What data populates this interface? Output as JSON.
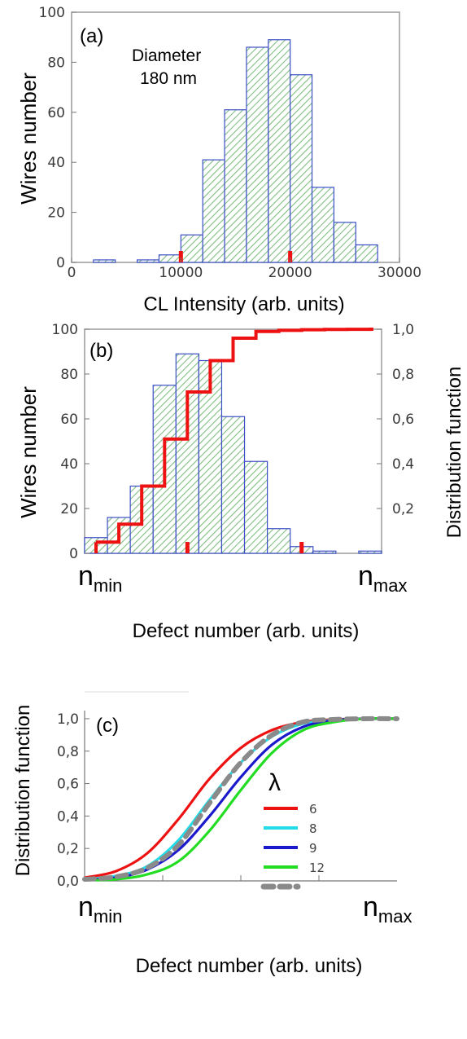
{
  "colors": {
    "bar_fill_hatch": "#7fbf7f",
    "bar_edge": "#3b4fc4",
    "marker_red": "#ee1111",
    "step_red": "#ee1111"
  },
  "chart_data": [
    {
      "id": "a",
      "type": "bar",
      "panel_label": "(a)",
      "xlabel": "CL Intensity (arb. units)",
      "ylabel": "Wires number",
      "xlim": [
        0,
        30000
      ],
      "ylim": [
        0,
        100
      ],
      "x_ticks": [
        "0",
        "10000",
        "20000",
        "30000"
      ],
      "y_ticks": [
        "0",
        "20",
        "40",
        "60",
        "80",
        "100"
      ],
      "annotation": [
        "Diameter",
        "180 nm"
      ],
      "bin_edges": [
        2000,
        4000,
        6000,
        8000,
        10000,
        12000,
        14000,
        16000,
        18000,
        20000,
        22000,
        24000,
        26000,
        28000
      ],
      "values": [
        1,
        0,
        1,
        3,
        11,
        41,
        61,
        86,
        89,
        75,
        30,
        16,
        7
      ],
      "markers_x": [
        10000,
        20000
      ]
    },
    {
      "id": "b",
      "type": "bar",
      "panel_label": "(b)",
      "xlabel": "Defect number (arb. units)",
      "ylabel": "Wires number",
      "ylabel_right": "Distribution function",
      "ylim": [
        0,
        100
      ],
      "ylim_right": [
        0,
        1
      ],
      "y_ticks": [
        "0",
        "20",
        "40",
        "60",
        "80",
        "100"
      ],
      "y_ticks_right": [
        "0,2",
        "0,4",
        "0,6",
        "0,8",
        "1,0"
      ],
      "x_min_label": {
        "base": "n",
        "sub": "min"
      },
      "x_max_label": {
        "base": "n",
        "sub": "max"
      },
      "bin_count": 13,
      "values": [
        7,
        16,
        30,
        75,
        89,
        86,
        61,
        41,
        11,
        3,
        1,
        0,
        1
      ],
      "cumulative": [
        0.05,
        0.13,
        0.3,
        0.51,
        0.72,
        0.86,
        0.96,
        0.99,
        0.995,
        0.998,
        0.999,
        0.9995,
        1.0
      ],
      "markers_bin": [
        4,
        9
      ]
    },
    {
      "id": "c",
      "type": "line",
      "panel_label": "(c)",
      "xlabel": "Defect number (arb. units)",
      "ylabel": "Distribution function",
      "ylim": [
        0,
        1.05
      ],
      "y_ticks": [
        "0,0",
        "0,2",
        "0,4",
        "0,6",
        "0,8",
        "1,0"
      ],
      "x_min_label": {
        "base": "n",
        "sub": "min"
      },
      "x_max_label": {
        "base": "n",
        "sub": "max"
      },
      "legend_title": "λ",
      "series": [
        {
          "name": "6",
          "color": "#ee1111",
          "dash": false,
          "points": [
            [
              0.0,
              0.02
            ],
            [
              0.1,
              0.06
            ],
            [
              0.2,
              0.17
            ],
            [
              0.3,
              0.38
            ],
            [
              0.4,
              0.63
            ],
            [
              0.5,
              0.82
            ],
            [
              0.6,
              0.93
            ],
            [
              0.7,
              0.98
            ],
            [
              0.8,
              0.995
            ],
            [
              0.9,
              1.0
            ],
            [
              1.0,
              1.0
            ]
          ]
        },
        {
          "name": "8",
          "color": "#22dde8",
          "dash": false,
          "points": [
            [
              0.0,
              0.01
            ],
            [
              0.1,
              0.03
            ],
            [
              0.2,
              0.09
            ],
            [
              0.3,
              0.25
            ],
            [
              0.4,
              0.5
            ],
            [
              0.5,
              0.73
            ],
            [
              0.6,
              0.89
            ],
            [
              0.7,
              0.97
            ],
            [
              0.8,
              0.99
            ],
            [
              0.9,
              1.0
            ],
            [
              1.0,
              1.0
            ]
          ]
        },
        {
          "name": "9",
          "color": "#1a1acc",
          "dash": false,
          "points": [
            [
              0.0,
              0.01
            ],
            [
              0.1,
              0.02
            ],
            [
              0.2,
              0.07
            ],
            [
              0.3,
              0.19
            ],
            [
              0.4,
              0.4
            ],
            [
              0.5,
              0.64
            ],
            [
              0.6,
              0.84
            ],
            [
              0.7,
              0.95
            ],
            [
              0.8,
              0.99
            ],
            [
              0.9,
              1.0
            ],
            [
              1.0,
              1.0
            ]
          ]
        },
        {
          "name": "12",
          "color": "#22dd22",
          "dash": false,
          "points": [
            [
              0.0,
              0.005
            ],
            [
              0.1,
              0.01
            ],
            [
              0.2,
              0.04
            ],
            [
              0.3,
              0.12
            ],
            [
              0.4,
              0.31
            ],
            [
              0.5,
              0.56
            ],
            [
              0.6,
              0.79
            ],
            [
              0.7,
              0.93
            ],
            [
              0.8,
              0.98
            ],
            [
              0.9,
              1.0
            ],
            [
              1.0,
              1.0
            ]
          ]
        },
        {
          "name": "",
          "color": "#8a8a8a",
          "dash": true,
          "points": [
            [
              0.0,
              0.01
            ],
            [
              0.1,
              0.025
            ],
            [
              0.2,
              0.08
            ],
            [
              0.3,
              0.22
            ],
            [
              0.4,
              0.48
            ],
            [
              0.5,
              0.73
            ],
            [
              0.6,
              0.9
            ],
            [
              0.7,
              0.98
            ],
            [
              0.8,
              0.995
            ],
            [
              0.9,
              1.0
            ],
            [
              1.0,
              1.0
            ]
          ]
        }
      ]
    }
  ]
}
